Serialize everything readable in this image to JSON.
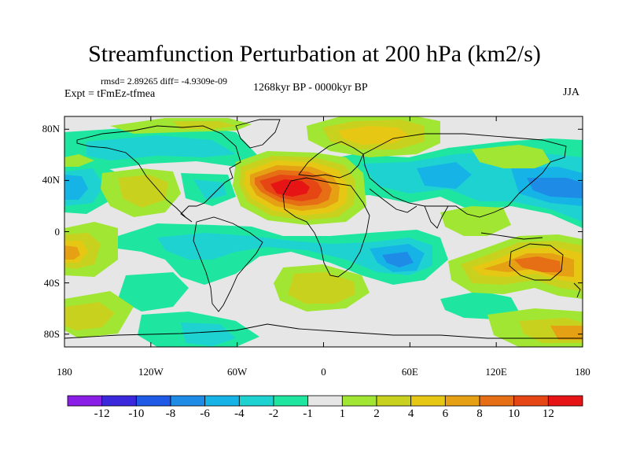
{
  "title": "Streamfunction Perturbation at 200 hPa (km2/s)",
  "stats_line": "rmsd= 2.89265 diff= -4.9309e-09",
  "experiment_line": "Expt = tFmEz-tfmea",
  "period_line": "1268kyr BP - 0000kyr BP",
  "season": "JJA",
  "latitude_ticks": [
    {
      "label": "80N",
      "lat": 80
    },
    {
      "label": "40N",
      "lat": 40
    },
    {
      "label": "0",
      "lat": 0
    },
    {
      "label": "40S",
      "lat": -40
    },
    {
      "label": "80S",
      "lat": -80
    }
  ],
  "longitude_ticks": [
    {
      "label": "180",
      "lon": -180
    },
    {
      "label": "120W",
      "lon": -120
    },
    {
      "label": "60W",
      "lon": -60
    },
    {
      "label": "0",
      "lon": 0
    },
    {
      "label": "60E",
      "lon": 60
    },
    {
      "label": "120E",
      "lon": 120
    },
    {
      "label": "180",
      "lon": 180
    }
  ],
  "colorbar": {
    "colors": [
      "#8a1ee6",
      "#3c28dc",
      "#1e5ae6",
      "#1e8ce6",
      "#16b4e6",
      "#1ed2d2",
      "#1ee6a0",
      "#e6e6e6",
      "#a0e632",
      "#c8d21e",
      "#e6c814",
      "#e6a014",
      "#e66e14",
      "#e64614",
      "#e61414"
    ],
    "labels": [
      "-12",
      "-10",
      "-8",
      "-6",
      "-4",
      "-2",
      "-1",
      "1",
      "2",
      "4",
      "6",
      "8",
      "10",
      "12"
    ]
  },
  "palette": {
    "zero": "#e6e6e6",
    "neg1": "#1ee6a0",
    "neg2": "#1ed2d2",
    "neg3": "#16b4e6",
    "neg4": "#1e8ce6",
    "pos1": "#a0e632",
    "pos2": "#c8d21e",
    "pos3": "#e6c814",
    "pos4": "#e6a014",
    "pos5": "#e66e14",
    "pos6": "#e64614",
    "pos7": "#e61414"
  }
}
